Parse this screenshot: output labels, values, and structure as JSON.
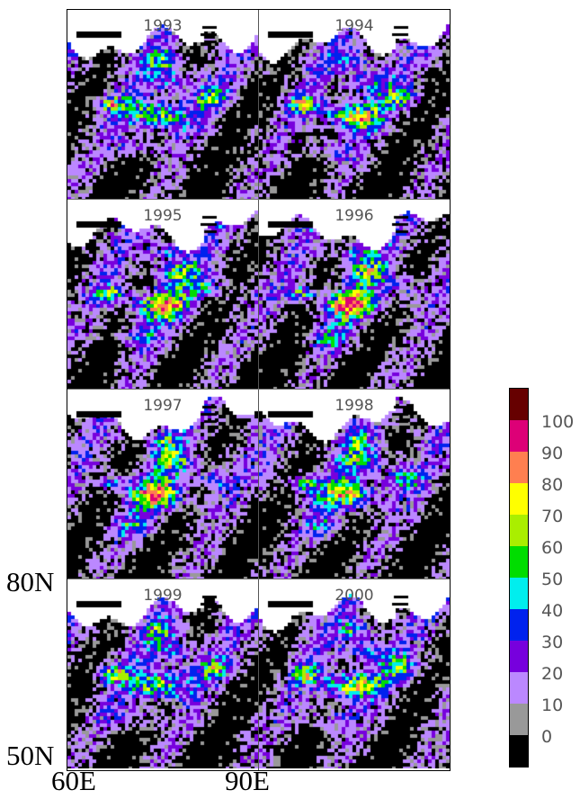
{
  "panels": [
    {
      "year": "1993"
    },
    {
      "year": "1994"
    },
    {
      "year": "1995"
    },
    {
      "year": "1996"
    },
    {
      "year": "1997"
    },
    {
      "year": "1998"
    },
    {
      "year": "1999"
    },
    {
      "year": "2000"
    }
  ],
  "axes": {
    "lat_top": "80N",
    "lat_bottom": "50N",
    "lon_left": "60E",
    "lon_right": "90E"
  },
  "colorbar": {
    "colors": [
      "#000000",
      "#999999",
      "#bb88ff",
      "#7700dd",
      "#0022ee",
      "#00eeee",
      "#00dd00",
      "#aaee00",
      "#ffff00",
      "#ff7f50",
      "#dd0077",
      "#660000"
    ],
    "labels": [
      "0",
      "10",
      "20",
      "30",
      "40",
      "50",
      "60",
      "70",
      "80",
      "90",
      "100"
    ]
  }
}
